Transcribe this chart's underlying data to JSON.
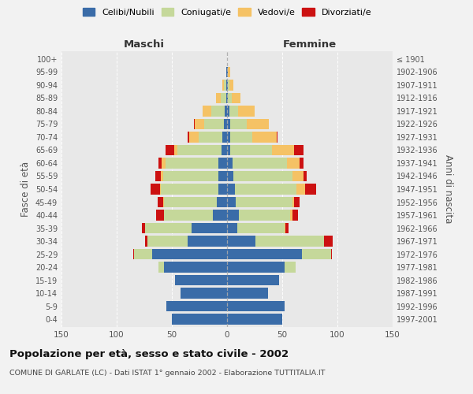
{
  "age_groups": [
    "0-4",
    "5-9",
    "10-14",
    "15-19",
    "20-24",
    "25-29",
    "30-34",
    "35-39",
    "40-44",
    "45-49",
    "50-54",
    "55-59",
    "60-64",
    "65-69",
    "70-74",
    "75-79",
    "80-84",
    "85-89",
    "90-94",
    "95-99",
    "100+"
  ],
  "birth_years": [
    "1997-2001",
    "1992-1996",
    "1987-1991",
    "1982-1986",
    "1977-1981",
    "1972-1976",
    "1967-1971",
    "1962-1966",
    "1957-1961",
    "1952-1956",
    "1947-1951",
    "1942-1946",
    "1937-1941",
    "1932-1936",
    "1927-1931",
    "1922-1926",
    "1917-1921",
    "1912-1916",
    "1907-1911",
    "1902-1906",
    "≤ 1901"
  ],
  "maschi": {
    "celibi": [
      50,
      55,
      42,
      47,
      57,
      68,
      36,
      32,
      13,
      9,
      8,
      8,
      8,
      5,
      4,
      3,
      2,
      1,
      1,
      1,
      0
    ],
    "coniugati": [
      0,
      0,
      0,
      0,
      5,
      16,
      36,
      42,
      44,
      48,
      52,
      50,
      48,
      40,
      22,
      18,
      12,
      5,
      2,
      0,
      0
    ],
    "vedovi": [
      0,
      0,
      0,
      0,
      0,
      0,
      0,
      0,
      0,
      1,
      1,
      2,
      3,
      3,
      8,
      8,
      8,
      4,
      1,
      0,
      0
    ],
    "divorziati": [
      0,
      0,
      0,
      0,
      0,
      1,
      2,
      3,
      7,
      5,
      8,
      5,
      3,
      8,
      2,
      1,
      0,
      0,
      0,
      0,
      0
    ]
  },
  "femmine": {
    "nubili": [
      50,
      52,
      37,
      47,
      52,
      68,
      26,
      9,
      11,
      8,
      7,
      6,
      5,
      3,
      3,
      3,
      2,
      1,
      1,
      1,
      0
    ],
    "coniugate": [
      0,
      0,
      0,
      0,
      10,
      26,
      62,
      43,
      46,
      51,
      56,
      53,
      49,
      38,
      20,
      15,
      8,
      3,
      1,
      0,
      0
    ],
    "vedove": [
      0,
      0,
      0,
      0,
      0,
      0,
      0,
      1,
      2,
      2,
      8,
      10,
      12,
      20,
      22,
      20,
      15,
      8,
      4,
      2,
      0
    ],
    "divorziate": [
      0,
      0,
      0,
      0,
      0,
      1,
      8,
      3,
      5,
      5,
      10,
      3,
      3,
      8,
      1,
      0,
      0,
      0,
      0,
      0,
      0
    ]
  },
  "colors": {
    "celibi": "#3a6ca8",
    "coniugati": "#c5d89a",
    "vedovi": "#f5c265",
    "divorziati": "#cc1111"
  },
  "xlim": 150,
  "title": "Popolazione per età, sesso e stato civile - 2002",
  "subtitle": "COMUNE DI GARLATE (LC) - Dati ISTAT 1° gennaio 2002 - Elaborazione TUTTITALIA.IT",
  "ylabel_left": "Fasce di età",
  "ylabel_right": "Anni di nascita",
  "xlabel_maschi": "Maschi",
  "xlabel_femmine": "Femmine",
  "bg_color": "#f2f2f2",
  "plot_bg": "#e8e8e8",
  "legend_labels": [
    "Celibi/Nubili",
    "Coniugati/e",
    "Vedovi/e",
    "Divorziati/e"
  ]
}
